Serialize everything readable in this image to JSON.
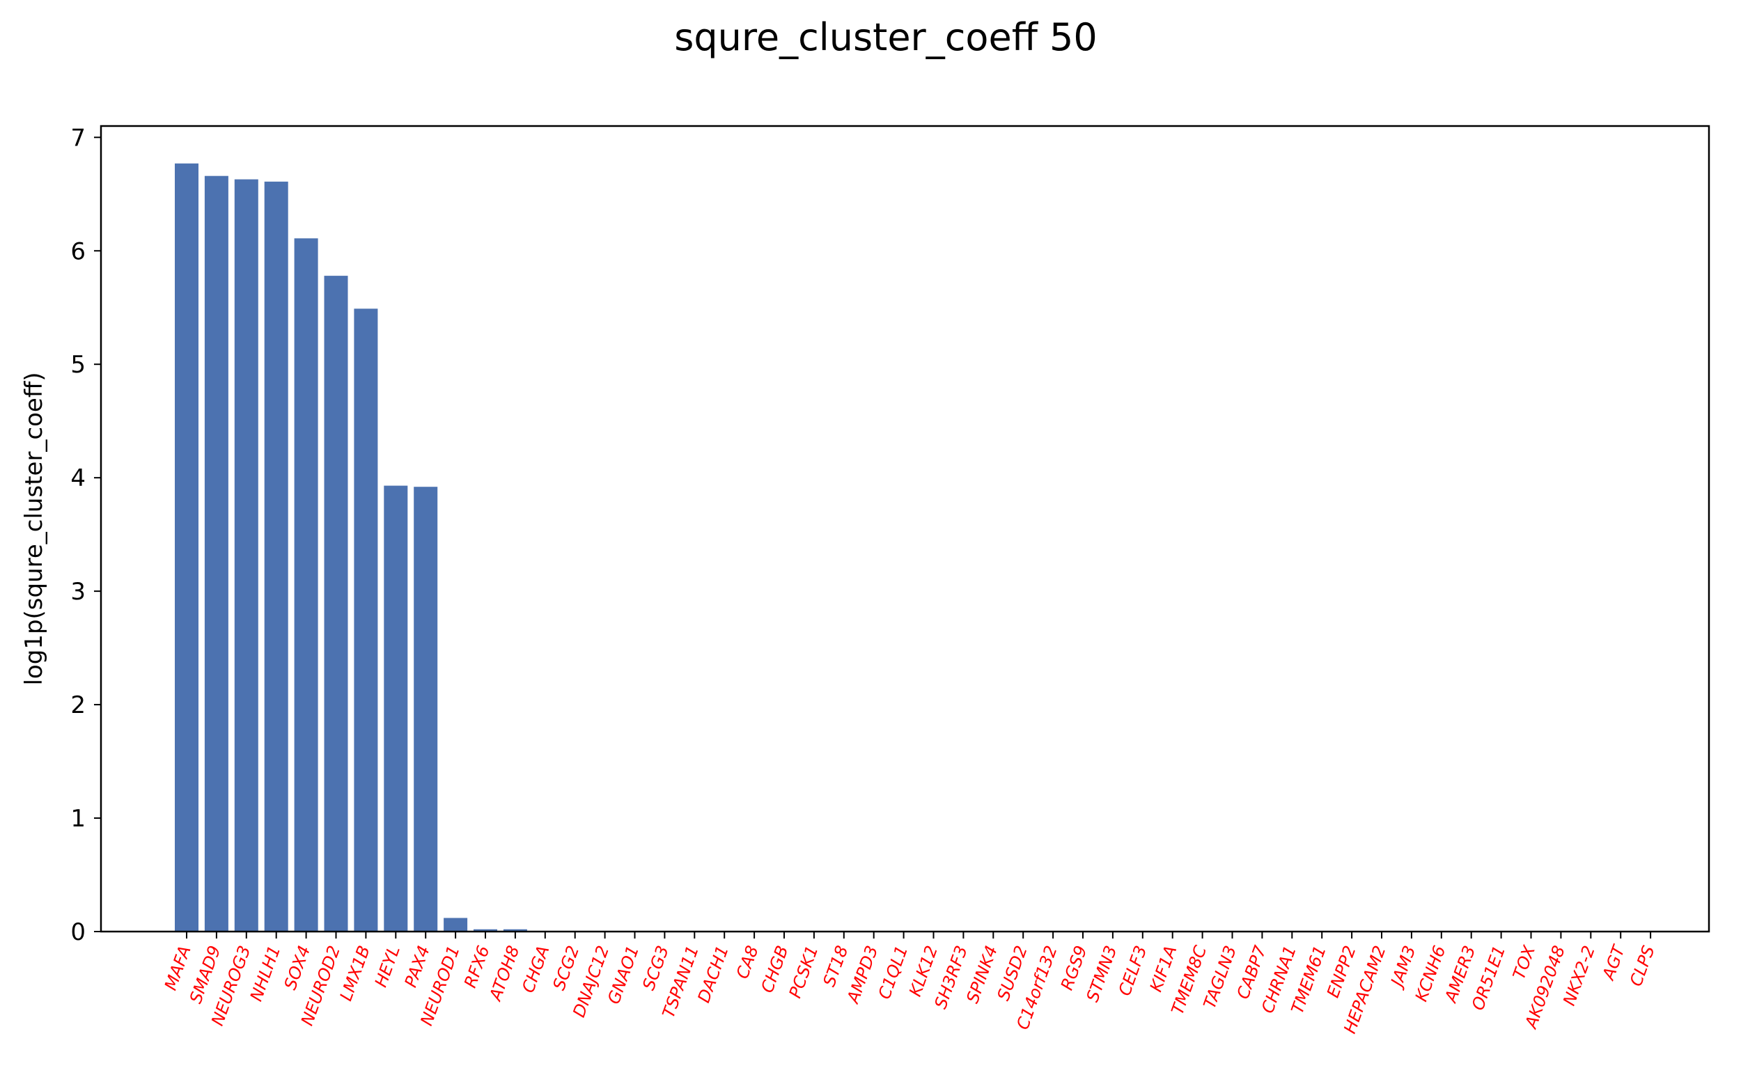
{
  "chart_data": {
    "type": "bar",
    "title": "squre_cluster_coeff 50",
    "xlabel": "",
    "ylabel": "log1p(squre_cluster_coeff)",
    "ylim": [
      0,
      7.1
    ],
    "yticks": [
      0,
      1,
      2,
      3,
      4,
      5,
      6,
      7
    ],
    "grid": false,
    "bar_color": "#4c72b0",
    "tick_label_color": "#ff0000",
    "categories": [
      "MAFA",
      "SMAD9",
      "NEUROG3",
      "NHLH1",
      "SOX4",
      "NEUROD2",
      "LMX1B",
      "HEYL",
      "PAX4",
      "NEUROD1",
      "RFX6",
      "ATOH8",
      "CHGA",
      "SCG2",
      "DNAJC12",
      "GNAO1",
      "SCG3",
      "TSPAN11",
      "DACH1",
      "CA8",
      "CHGB",
      "PCSK1",
      "ST18",
      "AMPD3",
      "C1QL1",
      "KLK12",
      "SH3RF3",
      "SPINK4",
      "SUSD2",
      "C14orf132",
      "RGS9",
      "STMN3",
      "CELF3",
      "KIF1A",
      "TMEM8C",
      "TAGLN3",
      "CABP7",
      "CHRNA1",
      "TMEM61",
      "ENPP2",
      "HEPACAM2",
      "JAM3",
      "KCNH6",
      "AMER3",
      "OR51E1",
      "TOX",
      "AK092048",
      "NKX2-2",
      "AGT",
      "CLPS"
    ],
    "values": [
      6.77,
      6.66,
      6.63,
      6.61,
      6.11,
      5.78,
      5.49,
      3.93,
      3.92,
      0.12,
      0.02,
      0.02,
      0,
      0,
      0,
      0,
      0,
      0,
      0,
      0,
      0,
      0,
      0,
      0,
      0,
      0,
      0,
      0,
      0,
      0,
      0,
      0,
      0,
      0,
      0,
      0,
      0,
      0,
      0,
      0,
      0,
      0,
      0,
      0,
      0,
      0,
      0,
      0,
      0,
      0
    ]
  }
}
